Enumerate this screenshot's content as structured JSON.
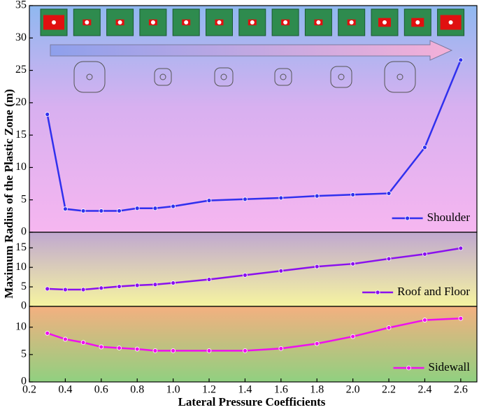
{
  "chart_data": [
    {
      "type": "line",
      "ylabel": "Maximum Radius of the Plastic Zone  (m)",
      "x": [
        0.3,
        0.4,
        0.5,
        0.6,
        0.7,
        0.8,
        0.9,
        1.0,
        1.2,
        1.4,
        1.6,
        1.8,
        2.0,
        2.2,
        2.4,
        2.6
      ],
      "series": [
        {
          "name": "Shoulder",
          "color": "#3030ee",
          "values": [
            18.2,
            3.6,
            3.3,
            3.3,
            3.3,
            3.7,
            3.7,
            4.0,
            4.9,
            5.1,
            5.3,
            5.6,
            5.8,
            6.0,
            13.1,
            26.6
          ]
        }
      ],
      "xlim": [
        0.2,
        2.69
      ],
      "ylim": [
        0,
        35
      ],
      "yticks": [
        0,
        5,
        10,
        15,
        20,
        25,
        30,
        35
      ],
      "legend": "lower right"
    },
    {
      "type": "line",
      "x": [
        0.3,
        0.4,
        0.5,
        0.6,
        0.7,
        0.8,
        0.9,
        1.0,
        1.2,
        1.4,
        1.6,
        1.8,
        2.0,
        2.2,
        2.4,
        2.6
      ],
      "series": [
        {
          "name": "Roof and Floor",
          "color": "#8a10ee",
          "values": [
            4.5,
            4.3,
            4.3,
            4.7,
            5.1,
            5.4,
            5.6,
            6.0,
            6.9,
            8.0,
            9.1,
            10.2,
            10.9,
            12.2,
            13.4,
            14.9
          ]
        }
      ],
      "xlim": [
        0.2,
        2.69
      ],
      "ylim": [
        0,
        19
      ],
      "yticks": [
        0,
        5,
        10,
        15
      ],
      "legend": "lower right"
    },
    {
      "type": "line",
      "xlabel": "Lateral Pressure Coefficients",
      "x": [
        0.3,
        0.4,
        0.5,
        0.6,
        0.7,
        0.8,
        0.9,
        1.0,
        1.2,
        1.4,
        1.6,
        1.8,
        2.0,
        2.2,
        2.4,
        2.6
      ],
      "series": [
        {
          "name": "Sidewall",
          "color": "#ee10ee",
          "values": [
            8.9,
            7.8,
            7.2,
            6.4,
            6.2,
            6.0,
            5.7,
            5.7,
            5.7,
            5.7,
            6.1,
            7.0,
            8.3,
            9.9,
            11.3,
            11.6
          ]
        }
      ],
      "xlim": [
        0.2,
        2.69
      ],
      "ylim": [
        0,
        13.8
      ],
      "yticks": [
        0,
        5,
        10
      ],
      "xticks": [
        0.2,
        0.4,
        0.6,
        0.8,
        {
          "value": 1,
          "label": "1.0"
        },
        1.2,
        1.4,
        1.6,
        1.8,
        {
          "value": 2,
          "label": "2.0"
        },
        2.2,
        2.4,
        2.6
      ],
      "legend": "lower right"
    }
  ]
}
